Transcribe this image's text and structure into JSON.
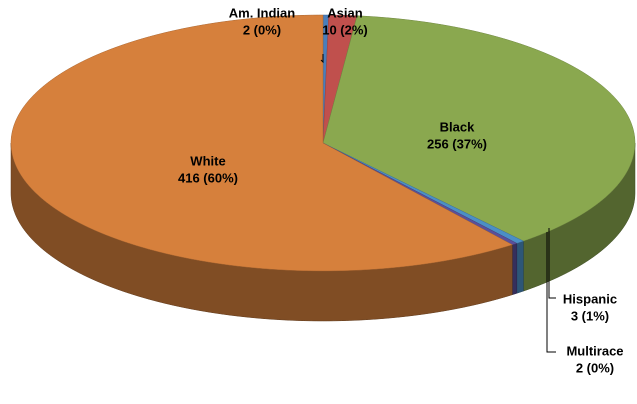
{
  "chart_data": {
    "type": "pie3d",
    "categories": [
      "Am. Indian",
      "Asian",
      "Black",
      "Hispanic",
      "Multirace",
      "White"
    ],
    "values": [
      2,
      10,
      256,
      3,
      2,
      416
    ],
    "value_labels": [
      "2 (0%)",
      "10 (2%)",
      "256 (37%)",
      "3 (1%)",
      "2 (0%)",
      "416 (60%)"
    ],
    "colors": [
      "#4a7ebb",
      "#c0504d",
      "#8aa84f",
      "#4b8fc6",
      "#5a4f9a",
      "#d6803c"
    ]
  }
}
